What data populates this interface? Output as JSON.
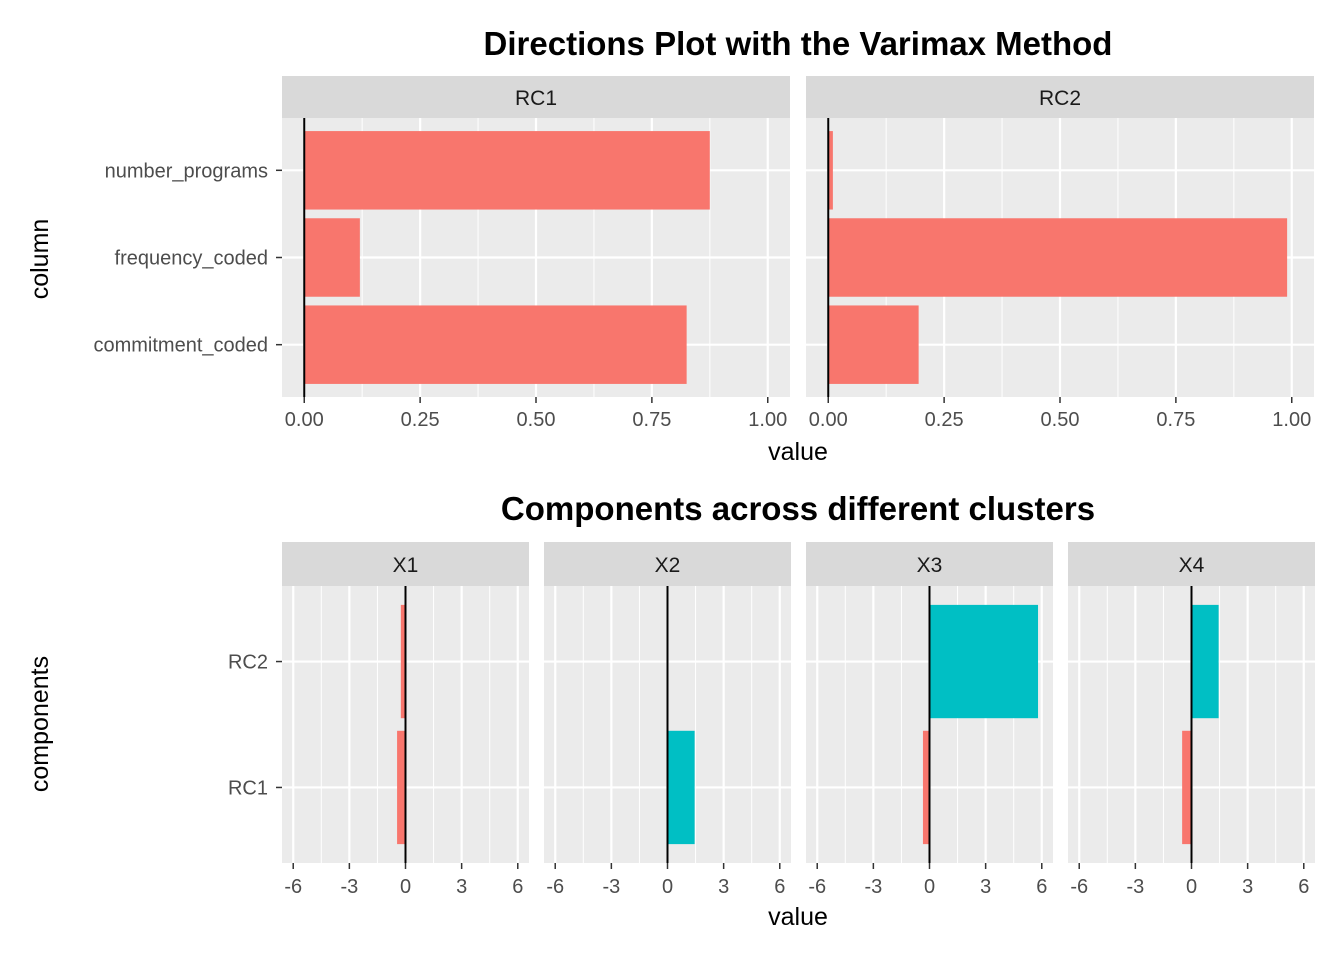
{
  "chart_data": [
    {
      "type": "bar",
      "orientation": "horizontal",
      "title": "Directions Plot with the Varimax Method",
      "xlabel": "value",
      "ylabel": "column",
      "categories": [
        "number_programs",
        "frequency_coded",
        "commitment_coded"
      ],
      "xlim": [
        -0.0,
        1.0
      ],
      "xticks": [
        "0.00",
        "0.25",
        "0.50",
        "0.75",
        "1.00"
      ],
      "bar_color": "#F8766D",
      "grid": true,
      "facets": [
        {
          "name": "RC1",
          "values": [
            0.875,
            0.12,
            0.825
          ]
        },
        {
          "name": "RC2",
          "values": [
            0.01,
            0.99,
            0.195
          ]
        }
      ]
    },
    {
      "type": "bar",
      "orientation": "horizontal",
      "title": "Components across different clusters",
      "xlabel": "value",
      "ylabel": "components",
      "categories": [
        "RC2",
        "RC1"
      ],
      "xlim": [
        -6,
        6
      ],
      "xticks": [
        "-6",
        "-3",
        "0",
        "3",
        "6"
      ],
      "negative_color": "#F8766D",
      "positive_color": "#00BFC4",
      "grid": true,
      "facets": [
        {
          "name": "X1",
          "values": [
            -0.25,
            -0.45
          ]
        },
        {
          "name": "X2",
          "values": [
            -0.05,
            1.45
          ]
        },
        {
          "name": "X3",
          "values": [
            5.8,
            -0.35
          ]
        },
        {
          "name": "X4",
          "values": [
            1.45,
            -0.5
          ]
        }
      ]
    }
  ]
}
